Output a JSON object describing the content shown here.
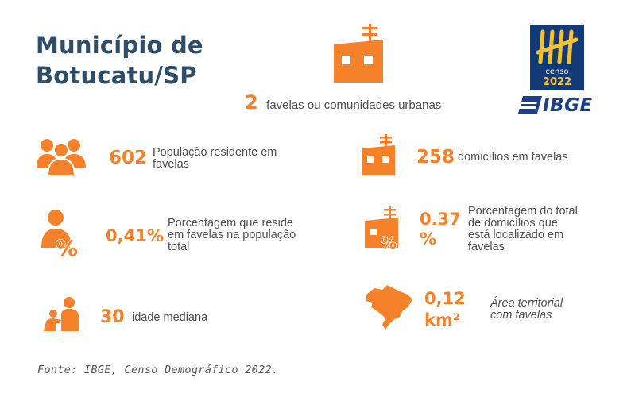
{
  "title": {
    "line1": "Município de",
    "line2": "Botucatu/SP"
  },
  "headline": {
    "value": "2",
    "label": "favelas ou comunidades urbanas"
  },
  "stats": {
    "population": {
      "value": "602",
      "label_line1": "População residente em",
      "label_line2": "favelas"
    },
    "households": {
      "value": "258",
      "label": "domicílios em favelas"
    },
    "pop_percent": {
      "value": "0,41%",
      "label_line1": "Porcentagem que reside",
      "label_line2": "em favelas na população",
      "label_line3": "total"
    },
    "household_percent": {
      "value_line1": "0.37",
      "value_line2": "%",
      "label_line1": "Porcentagem do total",
      "label_line2": "de domicílios que",
      "label_line3": "está localizado em",
      "label_line4": "favelas"
    },
    "median_age": {
      "value": "30",
      "label": "idade mediana"
    },
    "area": {
      "value_line1": "0,12",
      "value_line2": "km²",
      "label_line1": "Área territorial",
      "label_line2": "com favelas"
    }
  },
  "logo": {
    "censo_word": "censo",
    "censo_year": "2022",
    "ibge": "IBGE"
  },
  "source": "Fonte: IBGE, Censo Demográfico 2022.",
  "colors": {
    "accent": "#f5822a",
    "title": "#2e4d66",
    "ibge_blue": "#1c3f86",
    "censo_gold": "#f2c230"
  },
  "icons": [
    "house-antenna-icon",
    "people-group-icon",
    "person-percent-icon",
    "house-percent-icon",
    "adult-child-icon",
    "brazil-map-icon"
  ]
}
